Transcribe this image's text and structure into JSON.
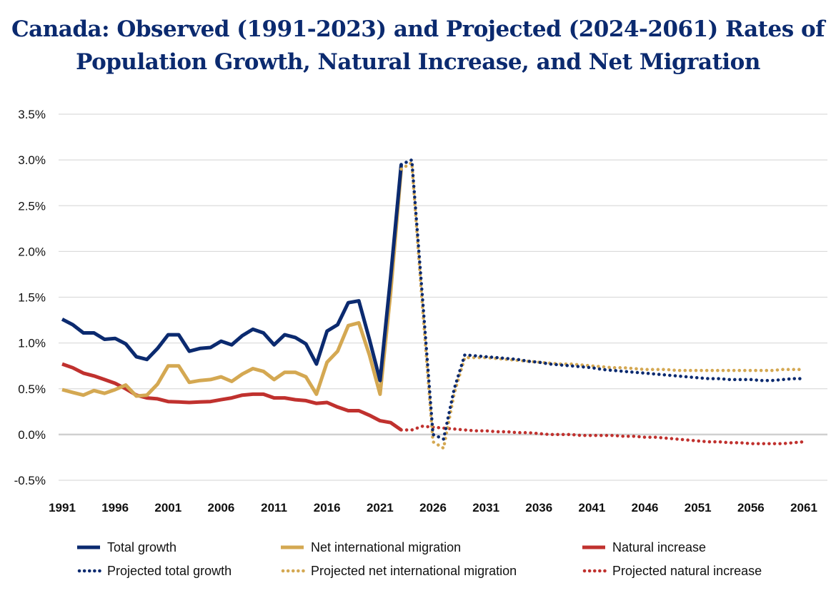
{
  "title_line1": "Canada: Observed (1991-2023) and Projected (2024-2061) Rates of",
  "title_line2": "Population Growth, Natural Increase, and Net Migration",
  "chart_data": {
    "type": "line",
    "title": "Canada: Observed (1991-2023) and Projected (2024-2061) Rates of Population Growth, Natural Increase, and Net Migration",
    "xlabel": "",
    "ylabel": "",
    "xlim": [
      1991,
      2062
    ],
    "ylim": [
      -0.5,
      3.5
    ],
    "yticks": [
      -0.5,
      0.0,
      0.5,
      1.0,
      1.5,
      2.0,
      2.5,
      3.0,
      3.5
    ],
    "ytick_labels": [
      "-0.5%",
      "0.0%",
      "0.5%",
      "1.0%",
      "1.5%",
      "2.0%",
      "2.5%",
      "3.0%",
      "3.5%"
    ],
    "xticks": [
      1991,
      1996,
      2001,
      2006,
      2011,
      2016,
      2021,
      2026,
      2031,
      2036,
      2041,
      2046,
      2051,
      2056,
      2061
    ],
    "grid": true,
    "legend_position": "bottom",
    "observed_x": [
      1991,
      1992,
      1993,
      1994,
      1995,
      1996,
      1997,
      1998,
      1999,
      2000,
      2001,
      2002,
      2003,
      2004,
      2005,
      2006,
      2007,
      2008,
      2009,
      2010,
      2011,
      2012,
      2013,
      2014,
      2015,
      2016,
      2017,
      2018,
      2019,
      2020,
      2021,
      2022,
      2023
    ],
    "projected_x": [
      2023,
      2024,
      2025,
      2026,
      2027,
      2028,
      2029,
      2030,
      2031,
      2032,
      2033,
      2034,
      2035,
      2036,
      2037,
      2038,
      2039,
      2040,
      2041,
      2042,
      2043,
      2044,
      2045,
      2046,
      2047,
      2048,
      2049,
      2050,
      2051,
      2052,
      2053,
      2054,
      2055,
      2056,
      2057,
      2058,
      2059,
      2060,
      2061
    ],
    "series": [
      {
        "name": "Total growth",
        "kind": "observed",
        "color": "#0b2a6f",
        "values": [
          1.26,
          1.2,
          1.11,
          1.11,
          1.04,
          1.05,
          0.99,
          0.85,
          0.82,
          0.94,
          1.09,
          1.09,
          0.91,
          0.94,
          0.95,
          1.02,
          0.98,
          1.08,
          1.15,
          1.11,
          0.98,
          1.09,
          1.06,
          0.99,
          0.77,
          1.13,
          1.2,
          1.44,
          1.46,
          1.04,
          0.59,
          1.72,
          2.95
        ]
      },
      {
        "name": "Net international migration",
        "kind": "observed",
        "color": "#d4a852",
        "values": [
          0.49,
          0.46,
          0.43,
          0.48,
          0.45,
          0.49,
          0.54,
          0.42,
          0.43,
          0.55,
          0.75,
          0.75,
          0.57,
          0.59,
          0.6,
          0.63,
          0.58,
          0.66,
          0.72,
          0.69,
          0.6,
          0.68,
          0.68,
          0.63,
          0.44,
          0.79,
          0.91,
          1.19,
          1.22,
          0.87,
          0.44,
          1.55,
          2.9
        ]
      },
      {
        "name": "Natural increase",
        "kind": "observed",
        "color": "#c0312e",
        "values": [
          0.77,
          0.73,
          0.67,
          0.64,
          0.6,
          0.56,
          0.5,
          0.43,
          0.4,
          0.39,
          0.36,
          0.355,
          0.35,
          0.355,
          0.36,
          0.38,
          0.4,
          0.43,
          0.44,
          0.44,
          0.4,
          0.4,
          0.38,
          0.37,
          0.34,
          0.35,
          0.3,
          0.26,
          0.26,
          0.21,
          0.15,
          0.13,
          0.05
        ]
      },
      {
        "name": "Projected total growth",
        "kind": "projected",
        "color": "#0b2a6f",
        "values": [
          2.95,
          3.0,
          1.5,
          0.0,
          -0.05,
          0.5,
          0.87,
          0.86,
          0.85,
          0.84,
          0.83,
          0.82,
          0.8,
          0.79,
          0.77,
          0.76,
          0.75,
          0.74,
          0.73,
          0.71,
          0.7,
          0.69,
          0.68,
          0.67,
          0.66,
          0.65,
          0.64,
          0.63,
          0.62,
          0.61,
          0.61,
          0.6,
          0.6,
          0.6,
          0.59,
          0.59,
          0.6,
          0.61,
          0.61
        ]
      },
      {
        "name": "Projected net international migration",
        "kind": "projected",
        "color": "#d4a852",
        "values": [
          2.9,
          2.97,
          1.4,
          -0.08,
          -0.15,
          0.45,
          0.84,
          0.84,
          0.84,
          0.83,
          0.82,
          0.81,
          0.8,
          0.79,
          0.78,
          0.77,
          0.77,
          0.76,
          0.75,
          0.74,
          0.73,
          0.73,
          0.72,
          0.71,
          0.71,
          0.71,
          0.7,
          0.7,
          0.7,
          0.7,
          0.7,
          0.7,
          0.7,
          0.7,
          0.7,
          0.7,
          0.71,
          0.71,
          0.71
        ]
      },
      {
        "name": "Projected natural increase",
        "kind": "projected",
        "color": "#c0312e",
        "values": [
          0.05,
          0.05,
          0.09,
          0.08,
          0.07,
          0.06,
          0.05,
          0.04,
          0.04,
          0.03,
          0.03,
          0.02,
          0.02,
          0.01,
          0.0,
          0.0,
          0.0,
          -0.01,
          -0.01,
          -0.01,
          -0.01,
          -0.02,
          -0.02,
          -0.03,
          -0.03,
          -0.04,
          -0.05,
          -0.06,
          -0.07,
          -0.08,
          -0.08,
          -0.09,
          -0.09,
          -0.1,
          -0.1,
          -0.1,
          -0.1,
          -0.09,
          -0.08
        ]
      }
    ]
  }
}
